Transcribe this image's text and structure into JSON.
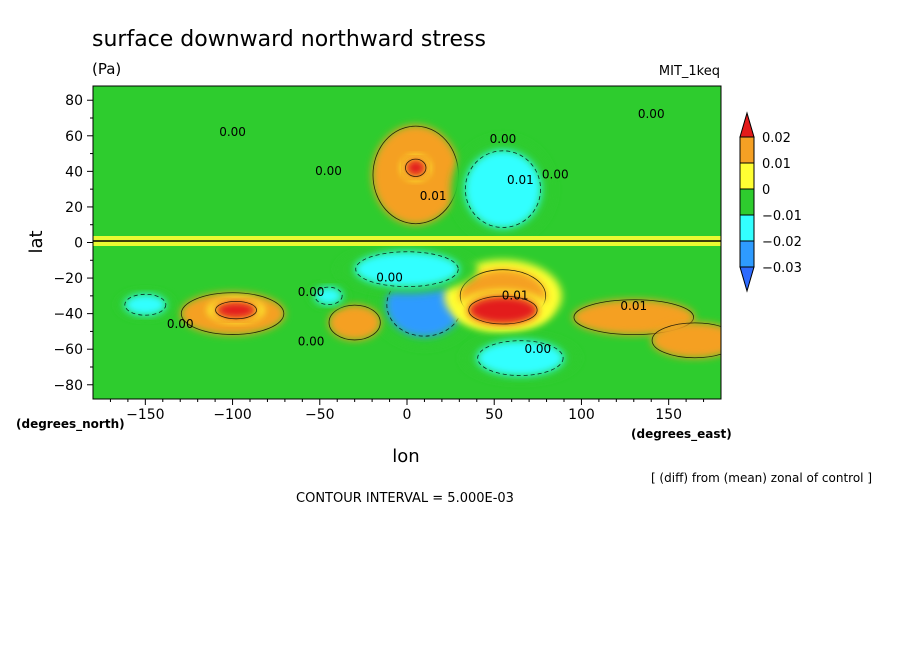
{
  "chart_data": {
    "type": "heatmap",
    "title": "surface downward northward stress",
    "units": "(Pa)",
    "dataset": "MIT_1keq",
    "xlabel": "lon",
    "ylabel": "lat",
    "x_units": "(degrees_east)",
    "y_units": "(degrees_north)",
    "xlim": [
      -180,
      180
    ],
    "ylim": [
      -88,
      88
    ],
    "x_ticks": [
      -150,
      -100,
      -50,
      0,
      50,
      100,
      150
    ],
    "y_ticks": [
      80,
      60,
      40,
      20,
      0,
      -20,
      -40,
      -60,
      -80
    ],
    "tick_labels": {
      "x": [
        "−150",
        "−100",
        "−50",
        "0",
        "50",
        "100",
        "150"
      ],
      "y": [
        "80",
        "60",
        "40",
        "20",
        "0",
        "−20",
        "−40",
        "−60",
        "−80"
      ]
    },
    "colorbar": {
      "levels": [
        0.02,
        0.01,
        0,
        -0.01,
        -0.02,
        -0.03
      ],
      "labels": [
        "0.02",
        "0.01",
        "0",
        "−0.01",
        "−0.02",
        "−0.03"
      ],
      "colors": [
        "#e31a1a",
        "#f5a024",
        "#ffff33",
        "#2ecc2e",
        "#33ffff",
        "#2e9bff",
        "#2e6bff"
      ]
    },
    "background_color": "#2ecc2e",
    "features": [
      {
        "kind": "positive",
        "lon": 55,
        "lat": -38,
        "lon_radius": 20,
        "lat_radius": 8,
        "value": 0.03
      },
      {
        "kind": "positive",
        "lon": 55,
        "lat": -30,
        "lon_radius": 25,
        "lat_radius": 15,
        "value": 0.015
      },
      {
        "kind": "positive",
        "lon": -98,
        "lat": -38,
        "lon_radius": 12,
        "lat_radius": 5,
        "value": 0.025
      },
      {
        "kind": "positive",
        "lon": -100,
        "lat": -40,
        "lon_radius": 30,
        "lat_radius": 12,
        "value": 0.012
      },
      {
        "kind": "positive",
        "lon": 5,
        "lat": 38,
        "lon_radius": 25,
        "lat_radius": 28,
        "value": 0.012
      },
      {
        "kind": "positive",
        "lon": 5,
        "lat": 42,
        "lon_radius": 6,
        "lat_radius": 5,
        "value": 0.025
      },
      {
        "kind": "positive",
        "lon": 130,
        "lat": -42,
        "lon_radius": 35,
        "lat_radius": 10,
        "value": 0.011
      },
      {
        "kind": "positive",
        "lon": 165,
        "lat": -55,
        "lon_radius": 25,
        "lat_radius": 10,
        "value": 0.011
      },
      {
        "kind": "positive",
        "lon": -30,
        "lat": -45,
        "lon_radius": 15,
        "lat_radius": 10,
        "value": 0.011
      },
      {
        "kind": "negative",
        "lon": 55,
        "lat": 30,
        "lon_radius": 22,
        "lat_radius": 22,
        "value": -0.02
      },
      {
        "kind": "negative",
        "lon": 10,
        "lat": -35,
        "lon_radius": 22,
        "lat_radius": 18,
        "value": -0.025
      },
      {
        "kind": "negative",
        "lon": 0,
        "lat": -15,
        "lon_radius": 30,
        "lat_radius": 10,
        "value": -0.015
      },
      {
        "kind": "negative",
        "lon": 65,
        "lat": -65,
        "lon_radius": 25,
        "lat_radius": 10,
        "value": -0.015
      },
      {
        "kind": "negative",
        "lon": -150,
        "lat": -35,
        "lon_radius": 12,
        "lat_radius": 6,
        "value": -0.015
      },
      {
        "kind": "negative",
        "lon": -45,
        "lat": -30,
        "lon_radius": 8,
        "lat_radius": 5,
        "value": -0.015
      }
    ],
    "contour_labels": [
      "0.00",
      "0.01"
    ],
    "annotations": {
      "contour_interval": "CONTOUR INTERVAL = 5.000E-03",
      "diff_note": "[ (diff) from (mean) zonal of control ]"
    }
  }
}
